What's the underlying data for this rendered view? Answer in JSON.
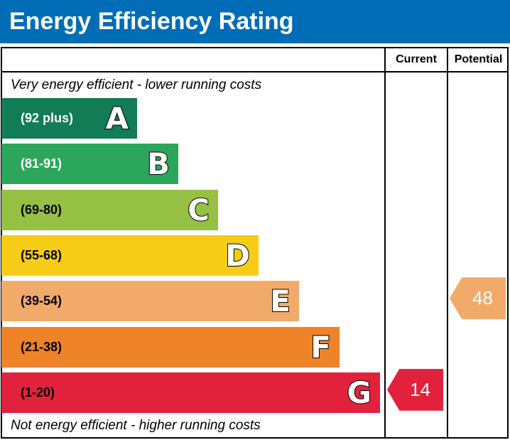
{
  "title": "Energy Efficiency Rating",
  "columns": {
    "current": "Current",
    "potential": "Potential"
  },
  "top_note": "Very energy efficient - lower running costs",
  "bottom_note": "Not energy efficient - higher running costs",
  "chart_data": {
    "type": "bar",
    "title": "Energy Efficiency Rating",
    "bands": [
      {
        "letter": "A",
        "range": "(92 plus)",
        "color": "#117c55"
      },
      {
        "letter": "B",
        "range": "(81-91)",
        "color": "#2ca65b"
      },
      {
        "letter": "C",
        "range": "(69-80)",
        "color": "#95c043"
      },
      {
        "letter": "D",
        "range": "(55-68)",
        "color": "#f7cc16"
      },
      {
        "letter": "E",
        "range": "(39-54)",
        "color": "#f2aa6a"
      },
      {
        "letter": "F",
        "range": "(21-38)",
        "color": "#ee8328"
      },
      {
        "letter": "G",
        "range": "(1-20)",
        "color": "#e2223d"
      }
    ],
    "current": {
      "value": 14,
      "band": "G",
      "color": "#e2223d"
    },
    "potential": {
      "value": 48,
      "band": "E",
      "color": "#f2aa6a"
    }
  }
}
